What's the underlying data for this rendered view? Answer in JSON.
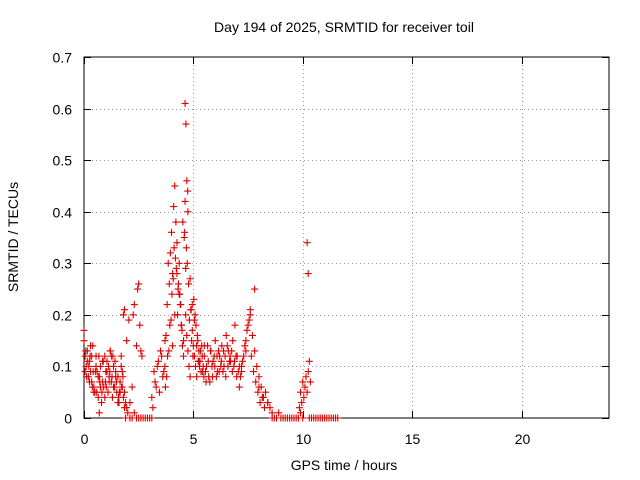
{
  "chart_data": {
    "type": "scatter",
    "title": "Day 194 of 2025, SRMTID for receiver toil",
    "xlabel": "GPS time / hours",
    "ylabel": "SRMTID / TECUs",
    "xlim": [
      0,
      24
    ],
    "ylim": [
      0,
      0.7
    ],
    "xticks": [
      0,
      5,
      10,
      15,
      20
    ],
    "yticks": [
      0,
      0.1,
      0.2,
      0.3,
      0.4,
      0.5,
      0.6,
      0.7
    ],
    "xtick_labels": [
      "0",
      "5",
      "10",
      "15",
      "20"
    ],
    "ytick_labels": [
      "0",
      "0.1",
      "0.2",
      "0.3",
      "0.4",
      "0.5",
      "0.6",
      "0.7"
    ],
    "grid": true,
    "marker": "+",
    "marker_color": "#dd0000",
    "series": [
      {
        "x": [
          0.0,
          0.05,
          0.1,
          0.15,
          0.2,
          0.25,
          0.3,
          0.35,
          0.4,
          0.45,
          0.5,
          0.55,
          0.6,
          0.65,
          0.7,
          0.75,
          0.8,
          0.85,
          0.9,
          0.95,
          1.0,
          1.05,
          1.1,
          1.15,
          1.2,
          1.25,
          1.3,
          1.35,
          1.4,
          1.45,
          1.5,
          1.55,
          1.6,
          1.65,
          1.7,
          1.75,
          1.8,
          1.85,
          1.9,
          0.05,
          0.15,
          0.25,
          0.35,
          0.45,
          0.55,
          0.65,
          0.75,
          0.85,
          0.95,
          1.05,
          1.15,
          1.25,
          1.35,
          1.45,
          1.55,
          1.65,
          1.75,
          0.08,
          0.22,
          0.38,
          0.52,
          0.68,
          0.82,
          0.98,
          1.12,
          1.28,
          1.42,
          1.58,
          1.72,
          1.85,
          0.12,
          0.28,
          0.42,
          0.58,
          0.72,
          0.88,
          1.02,
          1.18,
          1.32,
          1.48,
          1.62,
          1.78,
          0.0,
          0.3,
          0.7,
          1.2,
          1.7,
          1.8,
          1.85,
          1.95,
          2.05,
          1.9,
          1.95,
          2.0,
          2.1,
          2.2,
          2.3,
          2.4,
          2.5,
          2.6,
          2.7,
          2.8,
          2.9,
          3.0,
          3.1,
          2.1,
          2.2,
          2.25,
          2.3,
          2.4,
          2.45,
          2.5,
          2.55,
          2.6,
          2.65,
          3.1,
          3.2,
          3.3,
          3.4,
          3.5,
          3.6,
          3.7,
          3.15,
          3.25,
          3.35,
          3.45,
          3.55,
          3.65,
          3.7,
          3.75,
          3.8,
          3.85,
          3.9,
          3.95,
          4.0,
          4.05,
          4.1,
          4.15,
          4.2,
          4.25,
          4.3,
          4.35,
          4.4,
          4.45,
          4.5,
          4.55,
          4.6,
          4.65,
          4.7,
          4.75,
          4.8,
          4.85,
          4.9,
          4.95,
          5.0,
          5.05,
          5.1,
          5.15,
          5.2,
          5.25,
          5.3,
          5.35,
          5.4,
          5.45,
          5.5,
          3.72,
          3.82,
          3.92,
          4.02,
          4.12,
          4.22,
          4.32,
          4.42,
          4.52,
          4.62,
          4.72,
          4.82,
          4.92,
          5.02,
          5.12,
          5.22,
          5.32,
          5.42,
          3.78,
          3.88,
          3.98,
          4.08,
          4.18,
          4.28,
          4.38,
          4.48,
          4.58,
          4.68,
          4.78,
          4.88,
          4.98,
          5.08,
          5.18,
          5.28,
          5.38,
          5.48,
          4.05,
          4.15,
          4.25,
          4.35,
          4.45,
          4.55,
          4.65,
          4.75,
          4.85,
          4.95,
          5.05,
          5.15,
          5.25,
          5.35,
          4.62,
          4.66,
          4.7,
          4.74,
          5.5,
          5.6,
          5.7,
          5.8,
          5.9,
          6.0,
          6.1,
          6.2,
          6.3,
          6.4,
          6.5,
          6.6,
          6.7,
          6.8,
          6.9,
          7.0,
          7.1,
          5.55,
          5.65,
          5.75,
          5.85,
          5.95,
          6.05,
          6.15,
          6.25,
          6.35,
          6.45,
          6.55,
          6.65,
          6.75,
          6.85,
          6.95,
          7.05,
          5.58,
          5.68,
          5.78,
          5.88,
          5.98,
          6.08,
          6.18,
          6.28,
          6.38,
          6.48,
          6.58,
          6.68,
          6.78,
          6.88,
          6.98,
          7.1,
          7.2,
          7.3,
          7.4,
          7.5,
          7.6,
          7.7,
          7.8,
          7.9,
          8.0,
          8.1,
          8.2,
          8.3,
          8.4,
          8.5,
          7.15,
          7.25,
          7.35,
          7.45,
          7.55,
          7.65,
          7.75,
          7.85,
          7.95,
          8.05,
          8.15,
          8.25,
          7.2,
          7.4,
          7.6,
          7.8,
          8.0,
          8.2,
          8.4,
          8.6,
          8.6,
          8.7,
          8.8,
          8.9,
          9.0,
          9.1,
          9.2,
          9.3,
          9.4,
          9.5,
          9.6,
          9.7,
          9.8,
          9.9,
          10.0,
          9.85,
          9.9,
          9.95,
          10.0,
          10.05,
          10.1,
          10.15,
          10.2,
          10.25,
          10.3,
          10.35,
          10.2,
          10.25,
          10.3,
          10.4,
          10.5,
          10.6,
          10.7,
          10.8,
          10.9,
          11.0,
          11.1,
          11.2,
          11.3,
          11.4,
          11.5,
          11.6
        ],
        "y": [
          0.15,
          0.12,
          0.1,
          0.13,
          0.08,
          0.11,
          0.09,
          0.07,
          0.14,
          0.06,
          0.05,
          0.12,
          0.09,
          0.04,
          0.08,
          0.1,
          0.03,
          0.07,
          0.06,
          0.12,
          0.09,
          0.11,
          0.05,
          0.08,
          0.13,
          0.07,
          0.04,
          0.1,
          0.06,
          0.09,
          0.05,
          0.08,
          0.03,
          0.07,
          0.1,
          0.06,
          0.04,
          0.05,
          0.03,
          0.09,
          0.11,
          0.07,
          0.12,
          0.05,
          0.1,
          0.08,
          0.06,
          0.11,
          0.04,
          0.09,
          0.07,
          0.12,
          0.06,
          0.08,
          0.03,
          0.05,
          0.09,
          0.13,
          0.1,
          0.06,
          0.09,
          0.12,
          0.05,
          0.07,
          0.1,
          0.08,
          0.11,
          0.04,
          0.06,
          0.02,
          0.08,
          0.12,
          0.09,
          0.05,
          0.07,
          0.11,
          0.06,
          0.09,
          0.12,
          0.07,
          0.05,
          0.08,
          0.17,
          0.14,
          0.01,
          0.13,
          0.12,
          0.2,
          0.21,
          0.15,
          0.19,
          0.0,
          0.02,
          0.01,
          0.0,
          0.0,
          0.01,
          0.0,
          0.0,
          0.0,
          0.0,
          0.0,
          0.0,
          0.0,
          0.0,
          0.03,
          0.06,
          0.2,
          0.22,
          0.14,
          0.25,
          0.26,
          0.18,
          0.13,
          0.12,
          0.04,
          0.09,
          0.06,
          0.11,
          0.13,
          0.08,
          0.15,
          0.02,
          0.07,
          0.1,
          0.05,
          0.12,
          0.09,
          0.1,
          0.16,
          0.22,
          0.3,
          0.26,
          0.32,
          0.36,
          0.28,
          0.41,
          0.45,
          0.38,
          0.34,
          0.25,
          0.3,
          0.22,
          0.18,
          0.14,
          0.12,
          0.36,
          0.2,
          0.16,
          0.13,
          0.1,
          0.08,
          0.21,
          0.17,
          0.14,
          0.12,
          0.1,
          0.08,
          0.15,
          0.13,
          0.11,
          0.09,
          0.12,
          0.1,
          0.14,
          0.06,
          0.12,
          0.18,
          0.24,
          0.33,
          0.29,
          0.26,
          0.22,
          0.38,
          0.42,
          0.3,
          0.19,
          0.15,
          0.23,
          0.18,
          0.11,
          0.13,
          0.09,
          0.08,
          0.13,
          0.19,
          0.27,
          0.31,
          0.2,
          0.24,
          0.17,
          0.35,
          0.33,
          0.26,
          0.21,
          0.12,
          0.2,
          0.16,
          0.1,
          0.14,
          0.08,
          0.14,
          0.2,
          0.28,
          0.24,
          0.18,
          0.15,
          0.29,
          0.4,
          0.27,
          0.22,
          0.19,
          0.14,
          0.11,
          0.09,
          0.61,
          0.57,
          0.46,
          0.44,
          0.12,
          0.1,
          0.08,
          0.13,
          0.11,
          0.15,
          0.09,
          0.12,
          0.14,
          0.1,
          0.16,
          0.13,
          0.11,
          0.15,
          0.18,
          0.12,
          0.1,
          0.09,
          0.14,
          0.07,
          0.1,
          0.12,
          0.08,
          0.13,
          0.1,
          0.09,
          0.12,
          0.14,
          0.11,
          0.13,
          0.1,
          0.12,
          0.09,
          0.07,
          0.11,
          0.13,
          0.08,
          0.1,
          0.12,
          0.09,
          0.11,
          0.13,
          0.08,
          0.1,
          0.12,
          0.09,
          0.11,
          0.08,
          0.06,
          0.09,
          0.12,
          0.15,
          0.18,
          0.21,
          0.16,
          0.13,
          0.1,
          0.08,
          0.06,
          0.04,
          0.05,
          0.03,
          0.02,
          0.08,
          0.11,
          0.14,
          0.17,
          0.19,
          0.12,
          0.09,
          0.07,
          0.05,
          0.03,
          0.04,
          0.02,
          0.1,
          0.13,
          0.2,
          0.25,
          0.06,
          0.04,
          0.03,
          0.01,
          0.0,
          0.0,
          0.0,
          0.01,
          0.0,
          0.0,
          0.0,
          0.0,
          0.0,
          0.0,
          0.0,
          0.0,
          0.0,
          0.01,
          0.0,
          0.02,
          0.05,
          0.03,
          0.07,
          0.04,
          0.06,
          0.08,
          0.05,
          0.09,
          0.11,
          0.07,
          0.34,
          0.28,
          0.0,
          0.0,
          0.0,
          0.0,
          0.0,
          0.0,
          0.0,
          0.0,
          0.0,
          0.0,
          0.0,
          0.0,
          0.0,
          0.0
        ]
      }
    ]
  }
}
